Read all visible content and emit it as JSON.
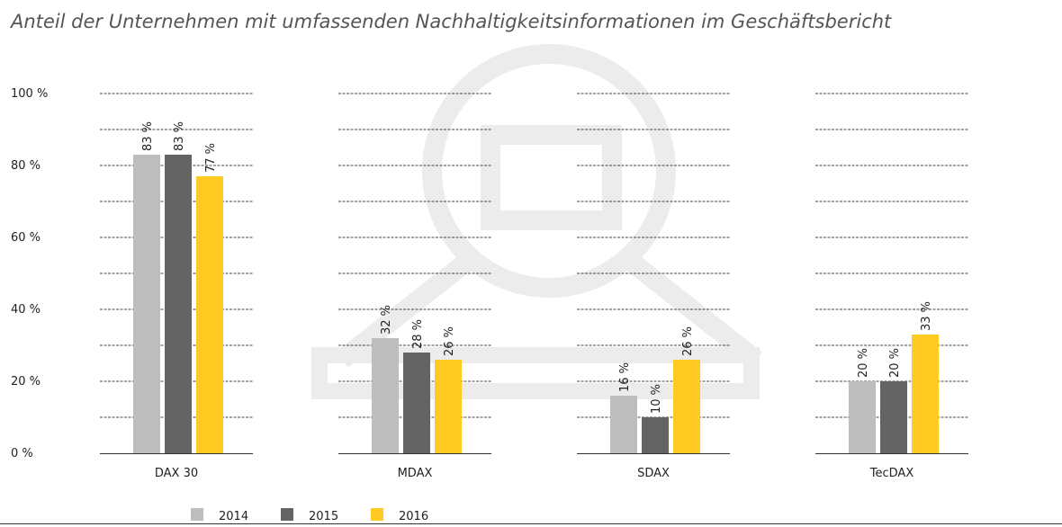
{
  "chart_data": {
    "type": "bar",
    "title": "Anteil der Unternehmen mit umfassenden Nachhaltigkeitsinformationen im Geschäftsbericht",
    "categories": [
      "DAX 30",
      "MDAX",
      "SDAX",
      "TecDAX"
    ],
    "series": [
      {
        "name": "2014",
        "color": "#bdbdbd",
        "values": [
          83,
          32,
          16,
          20
        ]
      },
      {
        "name": "2015",
        "color": "#646464",
        "values": [
          83,
          28,
          10,
          20
        ]
      },
      {
        "name": "2016",
        "color": "#ffcb22",
        "values": [
          77,
          26,
          26,
          33
        ]
      }
    ],
    "yticks": [
      "0 %",
      "20 %",
      "40 %",
      "60 %",
      "80 %",
      "100 %"
    ],
    "ylim": [
      0,
      100
    ],
    "value_suffix": " %",
    "grid": "dashed, every 10 %",
    "legend": "bottom-center"
  }
}
